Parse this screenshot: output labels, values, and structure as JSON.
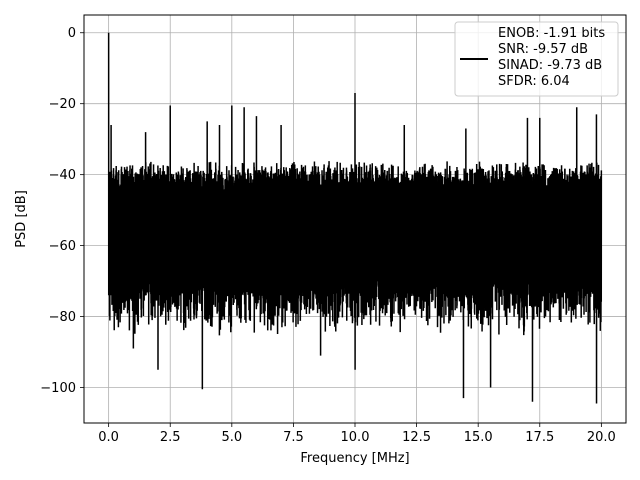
{
  "chart_data": {
    "type": "line",
    "xlabel": "Frequency [MHz]",
    "ylabel": "PSD [dB]",
    "xlim": [
      -1.0,
      21.0
    ],
    "ylim": [
      -110,
      5
    ],
    "xticks": [
      0.0,
      2.5,
      5.0,
      7.5,
      10.0,
      12.5,
      15.0,
      17.5,
      20.0
    ],
    "xtick_labels": [
      "0.0",
      "2.5",
      "5.0",
      "7.5",
      "10.0",
      "12.5",
      "15.0",
      "17.5",
      "20.0"
    ],
    "yticks": [
      0,
      -20,
      -40,
      -60,
      -80,
      -100
    ],
    "ytick_labels": [
      "0",
      "−20",
      "−40",
      "−60",
      "−80",
      "−100"
    ],
    "grid": true,
    "legend_position": "top-right",
    "series": [
      {
        "name": "ENOB: -1.91 bits\nSNR: -9.57 dB\nSINAD: -9.73 dB\nSFDR: 6.04",
        "color": "#000000",
        "description": "dense noise-like PSD, floor spanning roughly -36 to -80 dB across 0-20 MHz",
        "noise_band": {
          "upper": -36,
          "lower": -78,
          "min_dip": -104
        },
        "peaks": [
          {
            "x": 0.0,
            "y": 0.0
          },
          {
            "x": 0.1,
            "y": -26
          },
          {
            "x": 1.5,
            "y": -28
          },
          {
            "x": 2.5,
            "y": -20.5
          },
          {
            "x": 4.0,
            "y": -25
          },
          {
            "x": 4.5,
            "y": -26
          },
          {
            "x": 5.0,
            "y": -20.5
          },
          {
            "x": 5.5,
            "y": -21
          },
          {
            "x": 6.0,
            "y": -23.5
          },
          {
            "x": 7.0,
            "y": -26
          },
          {
            "x": 10.0,
            "y": -17
          },
          {
            "x": 12.0,
            "y": -26
          },
          {
            "x": 14.5,
            "y": -27
          },
          {
            "x": 17.0,
            "y": -24
          },
          {
            "x": 17.5,
            "y": -24
          },
          {
            "x": 19.0,
            "y": -21
          },
          {
            "x": 19.8,
            "y": -23
          }
        ],
        "dips": [
          {
            "x": 0.3,
            "y": -79
          },
          {
            "x": 1.0,
            "y": -89
          },
          {
            "x": 2.0,
            "y": -95
          },
          {
            "x": 3.8,
            "y": -100.5
          },
          {
            "x": 8.6,
            "y": -91
          },
          {
            "x": 10.0,
            "y": -95
          },
          {
            "x": 14.4,
            "y": -103
          },
          {
            "x": 15.5,
            "y": -100
          },
          {
            "x": 17.2,
            "y": -104
          },
          {
            "x": 19.8,
            "y": -104.5
          }
        ]
      }
    ]
  }
}
